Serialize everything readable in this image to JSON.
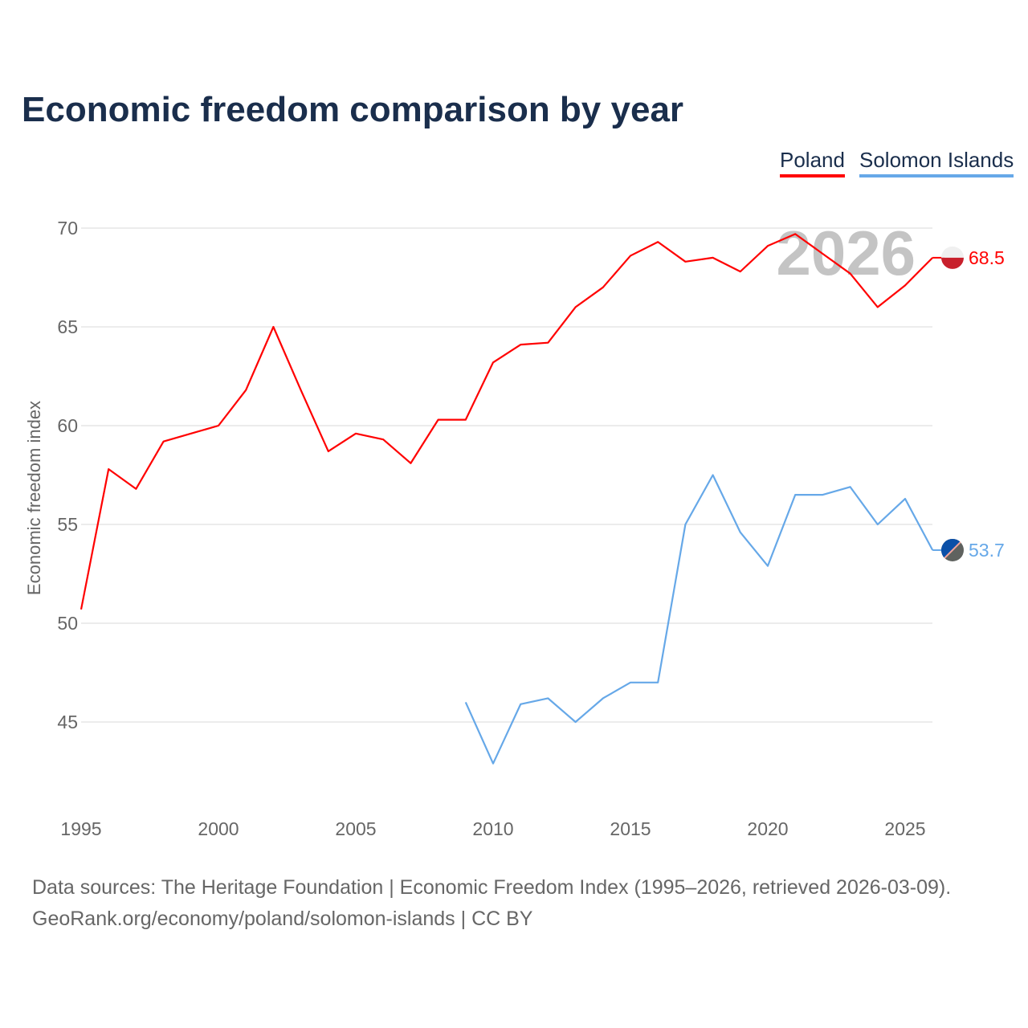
{
  "title": "Economic freedom comparison by year",
  "legend": [
    {
      "name": "Poland",
      "color": "#ff0000"
    },
    {
      "name": "Solomon Islands",
      "color": "#66a8e8"
    }
  ],
  "watermark_year": "2026",
  "source_line1": "Data sources: The Heritage Foundation | Economic Freedom Index (1995–2026, retrieved 2026-03-09).",
  "source_line2": "GeoRank.org/economy/poland/solomon-islands | CC BY",
  "chart_data": {
    "type": "line",
    "title": "Economic freedom comparison by year",
    "xlabel": "",
    "ylabel": "Economic freedom index",
    "xlim": [
      1995,
      2026
    ],
    "ylim": [
      41.5,
      72
    ],
    "xticks": [
      1995,
      2000,
      2005,
      2010,
      2015,
      2020,
      2025
    ],
    "yticks": [
      45,
      50,
      55,
      60,
      65,
      70
    ],
    "grid": true,
    "legend_position": "top-right",
    "series": [
      {
        "name": "Poland",
        "color": "#ff0000",
        "end_label": "68.5",
        "x": [
          1995,
          1996,
          1997,
          1998,
          1999,
          2000,
          2001,
          2002,
          2003,
          2004,
          2005,
          2006,
          2007,
          2008,
          2009,
          2010,
          2011,
          2012,
          2013,
          2014,
          2015,
          2016,
          2017,
          2018,
          2019,
          2020,
          2021,
          2022,
          2023,
          2024,
          2025,
          2026
        ],
        "values": [
          50.7,
          57.8,
          56.8,
          59.2,
          59.6,
          60.0,
          61.8,
          65.0,
          61.8,
          58.7,
          59.6,
          59.3,
          58.1,
          60.3,
          60.3,
          63.2,
          64.1,
          64.2,
          66.0,
          67.0,
          68.6,
          69.3,
          68.3,
          68.5,
          67.8,
          69.1,
          69.7,
          68.7,
          67.7,
          66.0,
          67.1,
          68.5
        ]
      },
      {
        "name": "Solomon Islands",
        "color": "#66a8e8",
        "end_label": "53.7",
        "x": [
          2009,
          2010,
          2011,
          2012,
          2013,
          2014,
          2015,
          2016,
          2017,
          2018,
          2019,
          2020,
          2021,
          2022,
          2023,
          2024,
          2025,
          2026
        ],
        "values": [
          46.0,
          42.9,
          45.9,
          46.2,
          45.0,
          46.2,
          47.0,
          47.0,
          55.0,
          57.5,
          54.6,
          52.9,
          56.5,
          56.5,
          56.9,
          55.0,
          56.3,
          53.7
        ]
      }
    ]
  }
}
